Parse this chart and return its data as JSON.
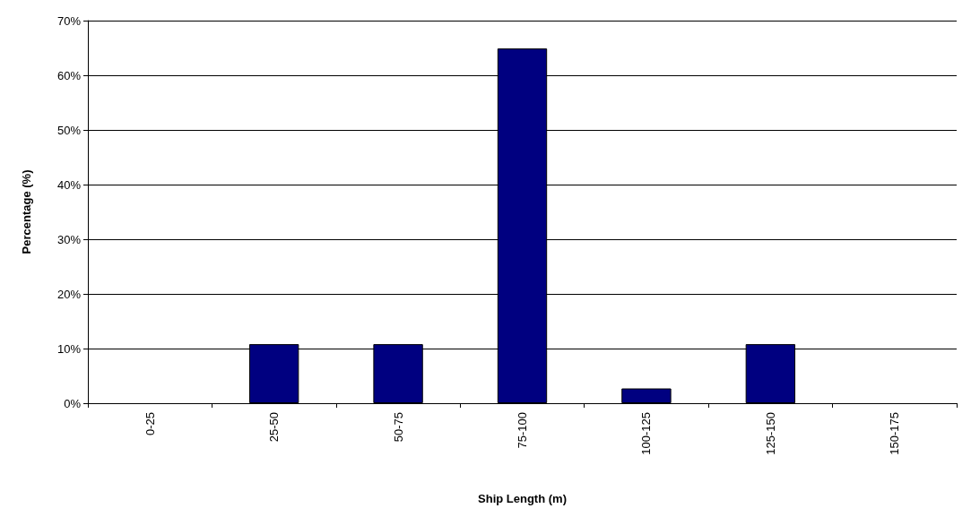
{
  "chart_data": {
    "type": "bar",
    "xlabel": "Ship Length (m)",
    "ylabel": "Percentage (%)",
    "categories": [
      "0-25",
      "25-50",
      "50-75",
      "75-100",
      "100-125",
      "125-150",
      "150-175"
    ],
    "values": [
      0,
      10.8,
      10.8,
      64.9,
      2.7,
      10.8,
      0
    ],
    "color": "#000080",
    "ylim": [
      0,
      70
    ],
    "yticks": [
      {
        "value": 0,
        "label": "0%"
      },
      {
        "value": 10,
        "label": "10%"
      },
      {
        "value": 20,
        "label": "20%"
      },
      {
        "value": 30,
        "label": "30%"
      },
      {
        "value": 40,
        "label": "40%"
      },
      {
        "value": 50,
        "label": "50%"
      },
      {
        "value": 60,
        "label": "60%"
      },
      {
        "value": 70,
        "label": "70%"
      }
    ],
    "grid": "y"
  }
}
